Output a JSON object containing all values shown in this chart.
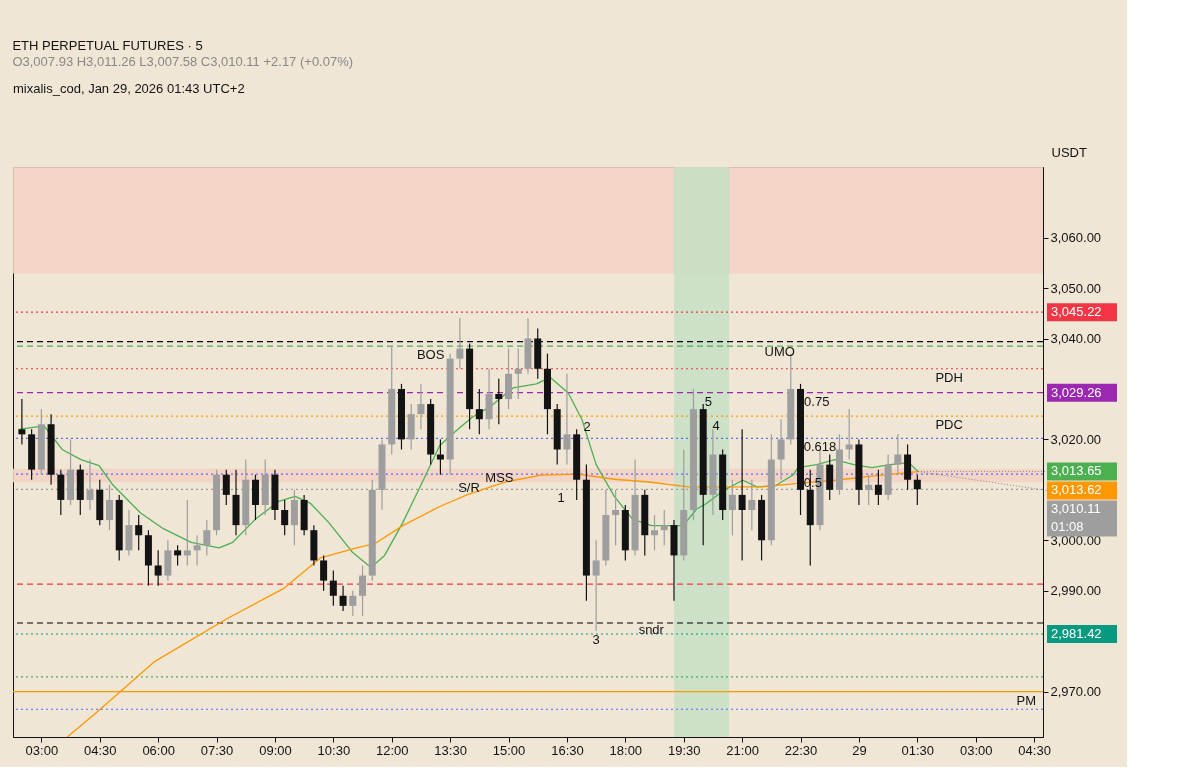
{
  "chart_data": {
    "type": "candlestick",
    "title": "ETH PERPETUAL FUTURES · 5",
    "subtitle": "O3,007.93  H3,011.26  L3,007.58  C3,010.11  +2.17 (+0.07%)",
    "ylabel": "USDT",
    "x": [
      "2026-01-28T02:30",
      "2026-01-28T02:45",
      "2026-01-28T03:00",
      "2026-01-28T03:15",
      "2026-01-28T03:30",
      "2026-01-28T03:45",
      "2026-01-28T04:00",
      "2026-01-28T04:15",
      "2026-01-28T04:30",
      "2026-01-28T04:45",
      "2026-01-28T05:00",
      "2026-01-28T05:15",
      "2026-01-28T05:30",
      "2026-01-28T05:45",
      "2026-01-28T06:00",
      "2026-01-28T06:15",
      "2026-01-28T06:30",
      "2026-01-28T06:45",
      "2026-01-28T07:00",
      "2026-01-28T07:15",
      "2026-01-28T07:30",
      "2026-01-28T07:45",
      "2026-01-28T08:00",
      "2026-01-28T08:15",
      "2026-01-28T08:30",
      "2026-01-28T08:45",
      "2026-01-28T09:00",
      "2026-01-28T09:15",
      "2026-01-28T09:30",
      "2026-01-28T09:45",
      "2026-01-28T10:00",
      "2026-01-28T10:15",
      "2026-01-28T10:30",
      "2026-01-28T10:45",
      "2026-01-28T11:00",
      "2026-01-28T11:15",
      "2026-01-28T11:30",
      "2026-01-28T11:45",
      "2026-01-28T12:00",
      "2026-01-28T12:15",
      "2026-01-28T12:30",
      "2026-01-28T12:45",
      "2026-01-28T13:00",
      "2026-01-28T13:15",
      "2026-01-28T13:30",
      "2026-01-28T13:45",
      "2026-01-28T14:00",
      "2026-01-28T14:15",
      "2026-01-28T14:30",
      "2026-01-28T14:45",
      "2026-01-28T15:00",
      "2026-01-28T15:15",
      "2026-01-28T15:30",
      "2026-01-28T15:45",
      "2026-01-28T16:00",
      "2026-01-28T16:15",
      "2026-01-28T16:30",
      "2026-01-28T16:45",
      "2026-01-28T17:00",
      "2026-01-28T17:15",
      "2026-01-28T17:30",
      "2026-01-28T17:45",
      "2026-01-28T18:00",
      "2026-01-28T18:15",
      "2026-01-28T18:30",
      "2026-01-28T18:45",
      "2026-01-28T19:00",
      "2026-01-28T19:15",
      "2026-01-28T19:30",
      "2026-01-28T19:45",
      "2026-01-28T20:00",
      "2026-01-28T20:15",
      "2026-01-28T20:30",
      "2026-01-28T20:45",
      "2026-01-28T21:00",
      "2026-01-28T21:15",
      "2026-01-28T21:30",
      "2026-01-28T21:45",
      "2026-01-28T22:00",
      "2026-01-28T22:15",
      "2026-01-28T22:30",
      "2026-01-28T22:45",
      "2026-01-28T23:00",
      "2026-01-28T23:15",
      "2026-01-28T23:30",
      "2026-01-28T23:45",
      "2026-01-29T00:00",
      "2026-01-29T00:15",
      "2026-01-29T00:30",
      "2026-01-29T00:45",
      "2026-01-29T01:00",
      "2026-01-29T01:15",
      "2026-01-29T01:30"
    ],
    "ohlc": [
      [
        3022,
        3028,
        3019,
        3021
      ],
      [
        3021,
        3022,
        3012,
        3014
      ],
      [
        3014,
        3026,
        3013,
        3023
      ],
      [
        3023,
        3025,
        3011,
        3013
      ],
      [
        3013,
        3014,
        3005,
        3008
      ],
      [
        3008,
        3020,
        3007,
        3014
      ],
      [
        3014,
        3015,
        3005,
        3008
      ],
      [
        3008,
        3016,
        3006,
        3010
      ],
      [
        3010,
        3012,
        3003,
        3004
      ],
      [
        3004,
        3011,
        3002,
        3008
      ],
      [
        3008,
        3009,
        2996,
        2998
      ],
      [
        2998,
        3006,
        2997,
        3003
      ],
      [
        3003,
        3005,
        2998,
        3001
      ],
      [
        3001,
        3002,
        2991,
        2995
      ],
      [
        2995,
        2998,
        2991,
        2993
      ],
      [
        2993,
        3000,
        2992,
        2998
      ],
      [
        2998,
        2999,
        2995,
        2997
      ],
      [
        2997,
        3008,
        2995,
        2998
      ],
      [
        2998,
        3001,
        2995,
        2999
      ],
      [
        2999,
        3004,
        2997,
        3002
      ],
      [
        3002,
        3014,
        3001,
        3013
      ],
      [
        3013,
        3014,
        3007,
        3009
      ],
      [
        3009,
        3014,
        3001,
        3003
      ],
      [
        3003,
        3016,
        3001,
        3012
      ],
      [
        3012,
        3013,
        3004,
        3007
      ],
      [
        3007,
        3016,
        3005,
        3013
      ],
      [
        3013,
        3014,
        3004,
        3006
      ],
      [
        3006,
        3008,
        3001,
        3003
      ],
      [
        3003,
        3010,
        2999,
        3008
      ],
      [
        3008,
        3009,
        3001,
        3002
      ],
      [
        3002,
        3003,
        2995,
        2996
      ],
      [
        2996,
        2997,
        2990,
        2992
      ],
      [
        2992,
        2994,
        2987,
        2989
      ],
      [
        2989,
        2991,
        2986,
        2987
      ],
      [
        2987,
        2990,
        2985,
        2989
      ],
      [
        2989,
        2995,
        2985,
        2993
      ],
      [
        2993,
        3012,
        2992,
        3010
      ],
      [
        3010,
        3020,
        3006,
        3019
      ],
      [
        3019,
        3038.5,
        3017,
        3030
      ],
      [
        3030,
        3031,
        3018,
        3020
      ],
      [
        3020,
        3027,
        3018,
        3025
      ],
      [
        3025,
        3031,
        3022,
        3027
      ],
      [
        3027,
        3028,
        3015,
        3017
      ],
      [
        3017,
        3020,
        3013,
        3016
      ],
      [
        3016,
        3037,
        3013,
        3036
      ],
      [
        3036,
        3044,
        3034,
        3038
      ],
      [
        3038,
        3039,
        3022,
        3026
      ],
      [
        3026,
        3030,
        3021,
        3024
      ],
      [
        3024,
        3034,
        3022,
        3029
      ],
      [
        3029,
        3032,
        3023,
        3028
      ],
      [
        3028,
        3038,
        3026,
        3033
      ],
      [
        3033,
        3038,
        3028,
        3034
      ],
      [
        3034,
        3044,
        3033,
        3040
      ],
      [
        3040,
        3042,
        3032,
        3034
      ],
      [
        3034,
        3037,
        3021,
        3026
      ],
      [
        3026,
        3027,
        3015,
        3018
      ],
      [
        3018,
        3033,
        3015,
        3021
      ],
      [
        3021,
        3022,
        3008,
        3012
      ],
      [
        3012,
        3015,
        2988,
        2993
      ],
      [
        2993,
        3000,
        2982,
        2996
      ],
      [
        2996,
        3010,
        2995,
        3005
      ],
      [
        3005,
        3010,
        2999,
        3006
      ],
      [
        3006,
        3007,
        2996,
        2998
      ],
      [
        2998,
        3016,
        2997,
        3009
      ],
      [
        3009,
        3010,
        2997,
        3001
      ],
      [
        3001,
        3005,
        2998,
        3002
      ],
      [
        3002,
        3006,
        2999,
        3003
      ],
      [
        3003,
        3004,
        2988,
        2997
      ],
      [
        2997,
        3018,
        2996,
        3006
      ],
      [
        3006,
        3030,
        3004,
        3026
      ],
      [
        3026,
        3027,
        2999,
        3009
      ],
      [
        3009,
        3022,
        3005,
        3017
      ],
      [
        3017,
        3018,
        3004,
        3006
      ],
      [
        3006,
        3012,
        3001,
        3009
      ],
      [
        3009,
        3022,
        2996,
        3006
      ],
      [
        3006,
        3012,
        3002,
        3008
      ],
      [
        3008,
        3009,
        2996,
        3000
      ],
      [
        3000,
        3021,
        2999,
        3016
      ],
      [
        3016,
        3024,
        3012,
        3020
      ],
      [
        3020,
        3037,
        3019,
        3030
      ],
      [
        3030,
        3031,
        3005,
        3010
      ],
      [
        3010,
        3014,
        2995,
        3003
      ],
      [
        3003,
        3018,
        3002,
        3015
      ],
      [
        3015,
        3017,
        3008,
        3010
      ],
      [
        3010,
        3021,
        3009,
        3018
      ],
      [
        3018,
        3026,
        3016,
        3019
      ],
      [
        3019,
        3020,
        3007,
        3010
      ],
      [
        3010,
        3013,
        3007,
        3011
      ],
      [
        3011,
        3014,
        3007,
        3009
      ],
      [
        3009,
        3017,
        3008,
        3015
      ],
      [
        3015,
        3021,
        3013,
        3017
      ],
      [
        3017,
        3019,
        3010,
        3012
      ],
      [
        3012,
        3013,
        3007,
        3010.11
      ]
    ],
    "colors": [
      "#131313",
      "#131313",
      "#9e9e9e",
      "#131313",
      "#131313",
      "#9e9e9e",
      "#131313",
      "#9e9e9e",
      "#131313",
      "#9e9e9e",
      "#131313",
      "#9e9e9e",
      "#131313",
      "#131313",
      "#131313",
      "#9e9e9e",
      "#131313",
      "#9e9e9e",
      "#9e9e9e",
      "#9e9e9e",
      "#9e9e9e",
      "#131313",
      "#131313",
      "#9e9e9e",
      "#131313",
      "#9e9e9e",
      "#131313",
      "#131313",
      "#9e9e9e",
      "#131313",
      "#131313",
      "#131313",
      "#131313",
      "#131313",
      "#9e9e9e",
      "#9e9e9e",
      "#9e9e9e",
      "#9e9e9e",
      "#9e9e9e",
      "#131313",
      "#9e9e9e",
      "#9e9e9e",
      "#131313",
      "#131313",
      "#9e9e9e",
      "#9e9e9e",
      "#131313",
      "#131313",
      "#9e9e9e",
      "#131313",
      "#9e9e9e",
      "#9e9e9e",
      "#9e9e9e",
      "#131313",
      "#131313",
      "#131313",
      "#9e9e9e",
      "#131313",
      "#131313",
      "#9e9e9e",
      "#9e9e9e",
      "#9e9e9e",
      "#131313",
      "#9e9e9e",
      "#131313",
      "#9e9e9e",
      "#9e9e9e",
      "#131313",
      "#9e9e9e",
      "#9e9e9e",
      "#131313",
      "#9e9e9e",
      "#131313",
      "#9e9e9e",
      "#131313",
      "#9e9e9e",
      "#131313",
      "#9e9e9e",
      "#9e9e9e",
      "#9e9e9e",
      "#131313",
      "#131313",
      "#9e9e9e",
      "#131313",
      "#9e9e9e",
      "#9e9e9e",
      "#131313",
      "#9e9e9e",
      "#131313",
      "#9e9e9e",
      "#9e9e9e",
      "#131313",
      "#131313"
    ],
    "series": [
      {
        "type": "line",
        "color": "#4caf50",
        "x": [
          "2026-01-28T02:25",
          "2026-01-28T03:04",
          "2026-01-28T03:32",
          "2026-01-28T04:01",
          "2026-01-28T04:29",
          "2026-01-28T04:50",
          "2026-01-28T05:33",
          "2026-01-28T06:08",
          "2026-01-28T06:51",
          "2026-01-28T07:34",
          "2026-01-28T07:55",
          "2026-01-28T08:30",
          "2026-01-28T09:06",
          "2026-01-28T09:31",
          "2026-01-28T09:55",
          "2026-01-28T10:23",
          "2026-01-28T10:59",
          "2026-01-28T11:28",
          "2026-01-28T11:49",
          "2026-01-28T12:17",
          "2026-01-28T12:46",
          "2026-01-28T13:14",
          "2026-01-28T13:42",
          "2026-01-28T14:04",
          "2026-01-28T14:32",
          "2026-01-28T15:07",
          "2026-01-28T15:43",
          "2026-01-28T16:04",
          "2026-01-28T16:32",
          "2026-01-28T16:53",
          "2026-01-28T17:15",
          "2026-01-28T17:43",
          "2026-01-28T18:11",
          "2026-01-28T18:40",
          "2026-01-28T19:08",
          "2026-01-28T19:29",
          "2026-01-28T19:50",
          "2026-01-28T20:05",
          "2026-01-28T20:33",
          "2026-01-28T21:01",
          "2026-01-28T21:23",
          "2026-01-28T21:51",
          "2026-01-28T22:19",
          "2026-01-28T22:26",
          "2026-01-28T22:55",
          "2026-01-28T23:23",
          "2026-01-28T23:52",
          "2026-01-29T00:20",
          "2026-01-29T00:48",
          "2026-01-29T01:17",
          "2026-01-29T01:31"
        ],
        "values": [
          3022,
          3022.7,
          3018,
          3016,
          3014.8,
          3011,
          3005.4,
          3002.3,
          2999.6,
          2998.5,
          2999.6,
          3004.2,
          3007.7,
          3008.7,
          3007.3,
          3003.5,
          2997.7,
          2994.6,
          2997,
          3003.5,
          3011.2,
          3018.8,
          3022,
          3024.4,
          3026.5,
          3030.2,
          3031,
          3032.3,
          3029.2,
          3024,
          3015,
          3008.7,
          3004.2,
          3002.9,
          3002.9,
          3002.9,
          3006.2,
          3007.3,
          3010,
          3011.9,
          3010.6,
          3010.8,
          3013,
          3014.4,
          3015,
          3016,
          3015,
          3014.4,
          3015,
          3015.4,
          3013.65
        ]
      },
      {
        "type": "line",
        "color": "#ff9800",
        "x": [
          "2026-01-28T03:40",
          "2026-01-28T04:29",
          "2026-01-28T05:55",
          "2026-01-28T07:48",
          "2026-01-28T09:13",
          "2026-01-28T10:10",
          "2026-01-28T11:06",
          "2026-01-28T11:35",
          "2026-01-28T12:17",
          "2026-01-28T13:14",
          "2026-01-28T13:56",
          "2026-01-28T14:53",
          "2026-01-28T15:50",
          "2026-01-28T16:46",
          "2026-01-28T17:43",
          "2026-01-28T18:40",
          "2026-01-28T19:37",
          "2026-01-28T20:33",
          "2026-01-28T21:30",
          "2026-01-28T22:26",
          "2026-01-28T23:23",
          "2026-01-29T00:20",
          "2026-01-29T01:31"
        ],
        "values": [
          2961,
          2966.3,
          2976,
          2984.6,
          2990.4,
          2996.5,
          2998.5,
          2999.4,
          3002.9,
          3006.7,
          3009,
          3011.5,
          3012.9,
          3013.1,
          3012.1,
          3011.5,
          3010.6,
          3010.6,
          3010.6,
          3011.3,
          3011.9,
          3012.7,
          3013.62
        ]
      }
    ],
    "xlim": [
      "2026-01-28T02:24",
      "2026-01-29T04:36"
    ],
    "xticks": [
      {
        "value": "2026-01-28T03:00",
        "label": "03:00"
      },
      {
        "value": "2026-01-28T04:30",
        "label": "04:30"
      },
      {
        "value": "2026-01-28T06:00",
        "label": "06:00"
      },
      {
        "value": "2026-01-28T07:30",
        "label": "07:30"
      },
      {
        "value": "2026-01-28T09:00",
        "label": "09:00"
      },
      {
        "value": "2026-01-28T10:30",
        "label": "10:30"
      },
      {
        "value": "2026-01-28T12:00",
        "label": "12:00"
      },
      {
        "value": "2026-01-28T13:30",
        "label": "13:30"
      },
      {
        "value": "2026-01-28T15:00",
        "label": "15:00"
      },
      {
        "value": "2026-01-28T16:30",
        "label": "16:30"
      },
      {
        "value": "2026-01-28T18:00",
        "label": "18:00"
      },
      {
        "value": "2026-01-28T19:30",
        "label": "19:30"
      },
      {
        "value": "2026-01-28T21:00",
        "label": "21:00"
      },
      {
        "value": "2026-01-28T22:30",
        "label": "22:30"
      },
      {
        "value": "2026-01-29T00:00",
        "label": "29"
      },
      {
        "value": "2026-01-29T01:30",
        "label": "01:30"
      },
      {
        "value": "2026-01-29T03:00",
        "label": "03:00"
      },
      {
        "value": "2026-01-29T04:30",
        "label": "04:30"
      }
    ],
    "ylim": [
      2961,
      3074
    ],
    "yticks": [
      {
        "value": 2970,
        "label": "2,970.00"
      },
      {
        "value": 2990,
        "label": "2,990.00"
      },
      {
        "value": 3000,
        "label": "3,000.00"
      },
      {
        "value": 3020,
        "label": "3,020.00"
      },
      {
        "value": 3040,
        "label": "3,040.00"
      },
      {
        "value": 3050,
        "label": "3,050.00"
      },
      {
        "value": 3060,
        "label": "3,060.00"
      }
    ],
    "grid": false,
    "bands": [
      {
        "axis": "y",
        "from": 3052.9,
        "to": 3074,
        "color": "#f2d3c4"
      },
      {
        "axis": "y",
        "from": 3011.5,
        "to": 3014.2,
        "color": "#f2d3c4"
      },
      {
        "axis": "x",
        "from": "2026-01-28T19:15",
        "to": "2026-01-28T20:40",
        "color": "#c9dfc6"
      }
    ],
    "ref_lines": [
      {
        "axis": "y",
        "value": 3034.0,
        "color": "#f23645",
        "line_style": "dotted"
      },
      {
        "axis": "y",
        "value": 3024.6,
        "color": "#ff9800",
        "line_style": "dotted"
      },
      {
        "axis": "y",
        "value": 2970.0,
        "color": "#ff9800",
        "line_style": "solid"
      },
      {
        "axis": "y",
        "value": 2972.9,
        "color": "#4caf50",
        "line_style": "dotted"
      },
      {
        "axis": "y",
        "value": 2966.5,
        "color": "#5b6cff",
        "line_style": "dotted"
      },
      {
        "axis": "y",
        "value": 3010.11,
        "color": "#9e9e9e",
        "line_style": "dotted",
        "label": "3,010.11\n01:08"
      },
      {
        "axis": "y",
        "value": 3045.22,
        "color": "#f23645",
        "line_style": "dotted",
        "label": "3,045.22"
      },
      {
        "axis": "y",
        "value": 2981.42,
        "color": "#089981",
        "line_style": "dotted",
        "label": "2,981.42"
      },
      {
        "axis": "y",
        "value": 2991.3,
        "color": "#f23645",
        "line_style": "dashed"
      },
      {
        "axis": "y",
        "value": 2983.6,
        "color": "#000000",
        "line_style": "dashed"
      },
      {
        "axis": "y",
        "value": 3039.4,
        "color": "#000000",
        "line_style": "dashed"
      },
      {
        "axis": "y",
        "value": 3038.5,
        "color": "#4caf50",
        "line_style": "dashed"
      },
      {
        "axis": "y",
        "value": 3029.26,
        "color": "#9c27b0",
        "line_style": "dashed",
        "label": "3,029.26"
      },
      {
        "axis": "y",
        "value": 3020.2,
        "color": "#5b6cff",
        "line_style": "dotted"
      },
      {
        "axis": "y",
        "value": 3013.1,
        "color": "#5b6cff",
        "line_style": "dotted"
      }
    ],
    "annotations": [
      "mixalis_cod, Jan 29, 2026 01:43 UTC+2",
      {
        "text": "BOS",
        "x": "2026-01-28T13:00",
        "y": 3038.5
      },
      {
        "text": "MSS",
        "x": "2026-01-28T14:46",
        "y": 3014.2
      },
      {
        "text": "S/R",
        "x": "2026-01-28T13:59",
        "y": 3012.1
      },
      {
        "text": "UMO",
        "x": "2026-01-28T21:58",
        "y": 3039.2
      },
      {
        "text": "sndr",
        "x": "2026-01-28T18:40",
        "y": 2984
      },
      {
        "text": "1",
        "x": "2026-01-28T16:21",
        "y": 3010.11
      },
      {
        "text": "2",
        "x": "2026-01-28T17:01",
        "y": 3024.2
      },
      {
        "text": "3",
        "x": "2026-01-28T17:15",
        "y": 2982
      },
      {
        "text": "4",
        "x": "2026-01-28T20:20",
        "y": 3024.5
      },
      {
        "text": "5",
        "x": "2026-01-28T20:08",
        "y": 3029.26
      },
      {
        "text": "0.75",
        "x": "2026-01-28T22:55",
        "y": 3029.26
      },
      {
        "text": "0.618",
        "x": "2026-01-28T23:00",
        "y": 3020.2
      },
      {
        "text": "0.5",
        "x": "2026-01-28T22:49",
        "y": 3013.1
      },
      {
        "text": "PDH",
        "x": "2026-01-29T02:19",
        "y": 3034.0
      },
      {
        "text": "PDC",
        "x": "2026-01-29T02:19",
        "y": 3024.6
      },
      {
        "text": "PM",
        "x": "2026-01-29T04:18",
        "y": 2970.0
      },
      {
        "text": "3,013.65",
        "x": "2026-01-29T01:31",
        "y": 3013.65
      },
      {
        "text": "3,013.62",
        "x": "2026-01-29T01:31",
        "y": 3013.62
      }
    ]
  }
}
